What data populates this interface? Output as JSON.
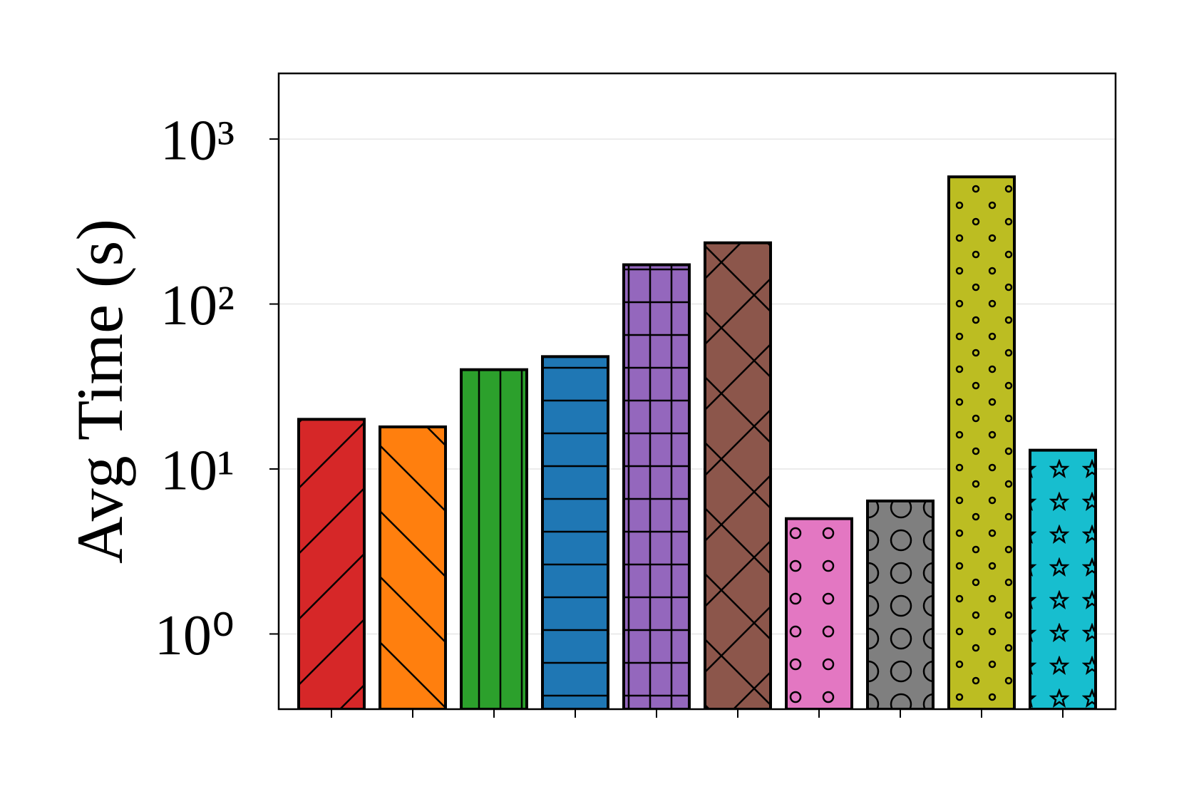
{
  "chart_data": {
    "type": "bar",
    "y_label": "Avg Time (s)",
    "categories": [
      null,
      null,
      null,
      null,
      null,
      null,
      null,
      null,
      null,
      null
    ],
    "values": [
      20,
      18,
      40,
      48,
      173,
      235,
      5,
      6.4,
      590,
      13
    ],
    "colors": [
      "#d62728",
      "#ff7f0e",
      "#2ca02c",
      "#1f77b4",
      "#9467bd",
      "#8c564b",
      "#e377c2",
      "#7f7f7f",
      "#bcbd22",
      "#17becf"
    ],
    "hatches": [
      "/",
      "\\",
      "|",
      "-",
      "+",
      "x",
      "o",
      "O",
      ".",
      "*"
    ],
    "log_scale": true,
    "grid": true,
    "ylim": [
      0.35,
      2500
    ],
    "yticks": [
      {
        "value": 1,
        "label": "10⁰"
      },
      {
        "value": 10,
        "label": "10¹"
      },
      {
        "value": 100,
        "label": "10²"
      },
      {
        "value": 1000,
        "label": "10³"
      }
    ]
  }
}
